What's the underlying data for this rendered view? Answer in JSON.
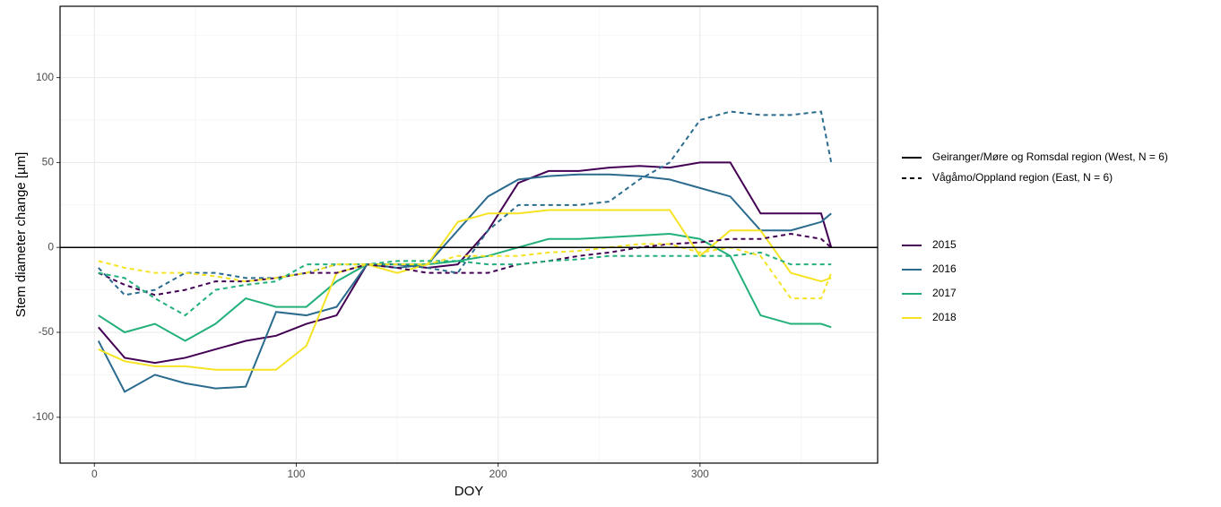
{
  "chart_data": {
    "type": "line",
    "xlabel": "DOY",
    "ylabel": "Stem diameter change [µm]",
    "x": [
      2,
      15,
      30,
      45,
      60,
      75,
      90,
      105,
      120,
      135,
      150,
      165,
      180,
      195,
      210,
      225,
      240,
      255,
      270,
      285,
      300,
      315,
      330,
      345,
      360,
      365
    ],
    "xlim": [
      -17,
      388
    ],
    "ylim": [
      -127,
      142
    ],
    "xticks": [
      0,
      100,
      200,
      300
    ],
    "yticks": [
      -100,
      -50,
      0,
      50,
      100
    ],
    "minor_xticks": [
      50,
      150,
      250,
      350
    ],
    "minor_yticks": [
      -125,
      -75,
      -25,
      25,
      75,
      125
    ],
    "grid": true,
    "hline": 0,
    "legend": "right",
    "linetypes": [
      {
        "name": "Geiranger/Møre og Romsdal region (West, N = 6)",
        "dash": "solid"
      },
      {
        "name": "Vågåmo/Oppland region (East, N = 6)",
        "dash": "dashed"
      }
    ],
    "series": [
      {
        "name": "2015",
        "color": "#440154",
        "dash": "solid",
        "values": [
          -47,
          -65,
          -68,
          -65,
          -60,
          -55,
          -52,
          -45,
          -40,
          -10,
          -10,
          -12,
          -10,
          10,
          38,
          45,
          45,
          47,
          48,
          47,
          50,
          50,
          20,
          20,
          20,
          0
        ]
      },
      {
        "name": "2016",
        "color": "#2a6b8e",
        "dash": "solid",
        "values": [
          -55,
          -85,
          -75,
          -80,
          -83,
          -82,
          -38,
          -40,
          -35,
          -10,
          -12,
          -10,
          10,
          30,
          40,
          42,
          43,
          43,
          42,
          40,
          35,
          30,
          10,
          10,
          15,
          20
        ]
      },
      {
        "name": "2017",
        "color": "#22b07a",
        "dash": "solid",
        "values": [
          -40,
          -50,
          -45,
          -55,
          -45,
          -30,
          -35,
          -35,
          -20,
          -10,
          -10,
          -10,
          -8,
          -5,
          0,
          5,
          5,
          6,
          7,
          8,
          5,
          -5,
          -40,
          -45,
          -45,
          -47
        ]
      },
      {
        "name": "2018",
        "color": "#f5e324",
        "dash": "solid",
        "values": [
          -60,
          -67,
          -70,
          -70,
          -72,
          -72,
          -72,
          -58,
          -15,
          -10,
          -15,
          -10,
          15,
          20,
          20,
          22,
          22,
          22,
          22,
          22,
          -5,
          10,
          10,
          -15,
          -20,
          -18
        ]
      },
      {
        "name": "2015",
        "color": "#440154",
        "dash": "dashed",
        "values": [
          -15,
          -22,
          -28,
          -25,
          -20,
          -20,
          -18,
          -15,
          -15,
          -10,
          -12,
          -15,
          -15,
          -15,
          -10,
          -8,
          -5,
          -3,
          0,
          2,
          3,
          5,
          5,
          8,
          5,
          0
        ]
      },
      {
        "name": "2016",
        "color": "#2a6b8e",
        "dash": "dashed",
        "values": [
          -12,
          -28,
          -25,
          -15,
          -15,
          -18,
          -18,
          -15,
          -10,
          -10,
          -10,
          -12,
          -15,
          10,
          25,
          25,
          25,
          27,
          40,
          50,
          75,
          80,
          78,
          78,
          80,
          50
        ]
      },
      {
        "name": "2017",
        "color": "#22b07a",
        "dash": "dashed",
        "values": [
          -15,
          -18,
          -30,
          -40,
          -25,
          -22,
          -20,
          -10,
          -10,
          -10,
          -8,
          -8,
          -8,
          -10,
          -10,
          -8,
          -7,
          -5,
          -5,
          -5,
          -5,
          -5,
          -3,
          -10,
          -10,
          -10
        ]
      },
      {
        "name": "2018",
        "color": "#f5e324",
        "dash": "dashed",
        "values": [
          -8,
          -12,
          -15,
          -15,
          -17,
          -20,
          -18,
          -15,
          -10,
          -10,
          -10,
          -10,
          -5,
          -5,
          -5,
          -3,
          -2,
          0,
          2,
          2,
          -3,
          0,
          -5,
          -30,
          -30,
          -15
        ]
      }
    ]
  }
}
